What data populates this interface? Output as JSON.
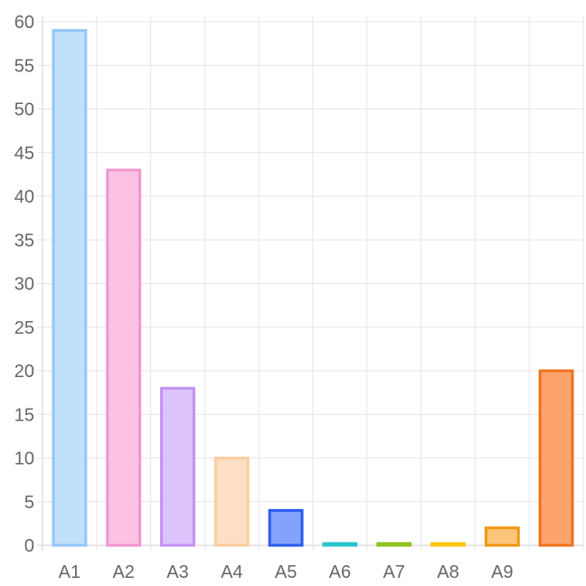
{
  "chart_data": {
    "type": "bar",
    "categories": [
      "A1",
      "A2",
      "A3",
      "A4",
      "A5",
      "A6",
      "A7",
      "A8",
      "A9",
      ""
    ],
    "values": [
      59,
      43,
      18,
      10,
      4,
      0,
      0,
      0,
      2,
      20
    ],
    "ylim": [
      0,
      60
    ],
    "yticks": [
      0,
      5,
      10,
      15,
      20,
      25,
      30,
      35,
      40,
      45,
      50,
      55,
      60
    ],
    "grid": true,
    "legend": "none",
    "title": "",
    "xlabel": "",
    "ylabel": "",
    "colors": {
      "fill": [
        "#c2dffb",
        "#fbc2e4",
        "#dcc3fa",
        "#fcdfc4",
        "#85a2fb",
        "#7cd8d8",
        "#b6d86a",
        "#fce38a",
        "#fcc67a",
        "#fca46c"
      ],
      "stroke": [
        "#94c6fa",
        "#f296ce",
        "#c391f2",
        "#fccda0",
        "#2a5bf0",
        "#26c4c8",
        "#8ec21b",
        "#f9c80d",
        "#f29512",
        "#f0711b"
      ]
    }
  }
}
